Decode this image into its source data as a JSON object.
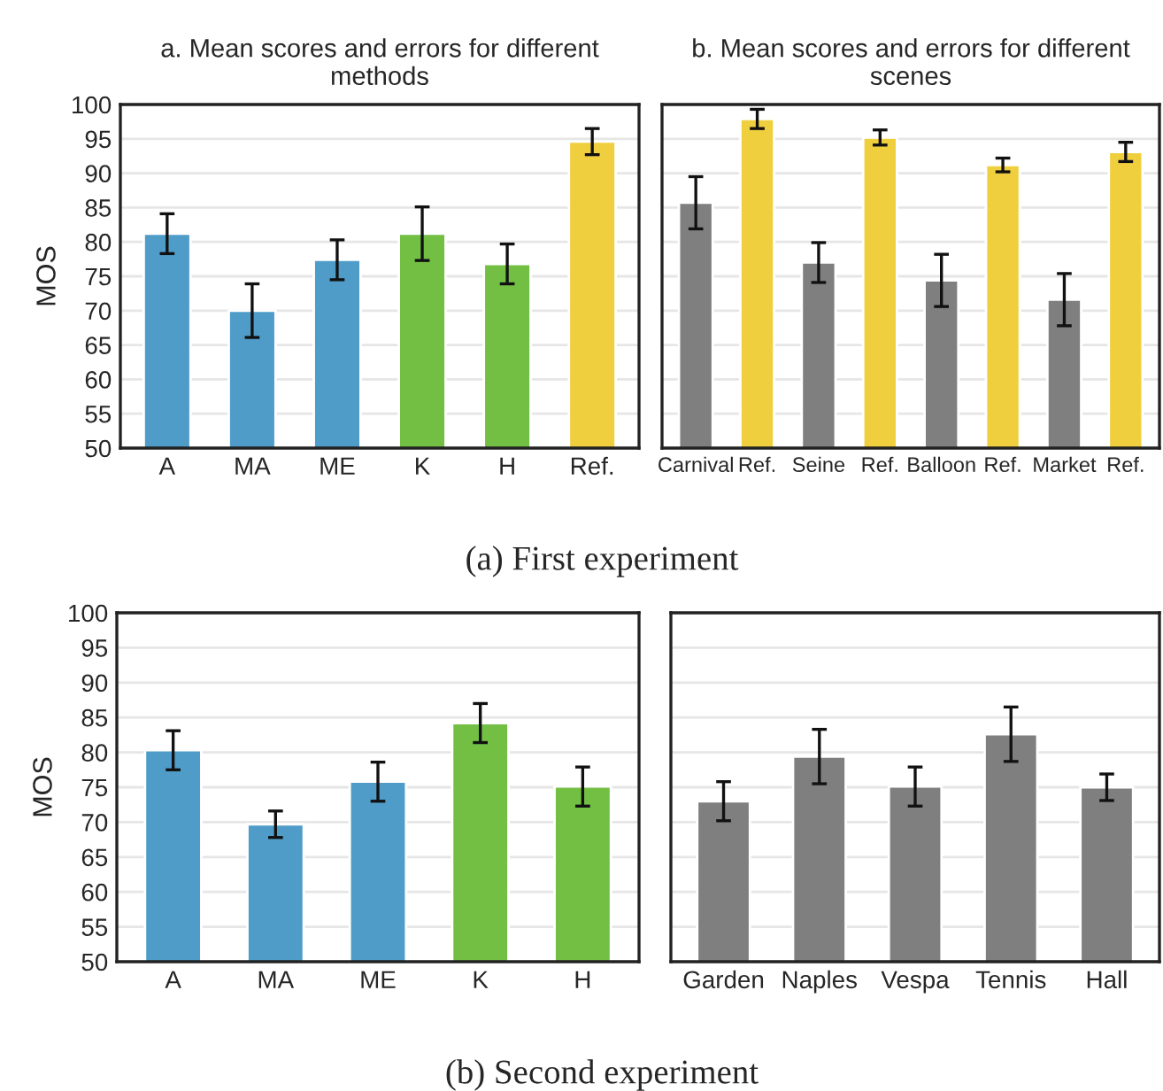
{
  "chart_data": [
    {
      "type": "bar",
      "title": "a. Mean scores and errors for different\nmethods",
      "ylabel": "MOS",
      "categories": [
        "A",
        "MA",
        "ME",
        "K",
        "H",
        "Ref."
      ],
      "values": [
        81.2,
        70.0,
        77.4,
        81.2,
        76.8,
        94.6
      ],
      "errors": [
        2.9,
        3.9,
        2.9,
        3.9,
        2.9,
        1.9
      ],
      "colors": [
        "#4f9cc9",
        "#4f9cc9",
        "#4f9cc9",
        "#72bf44",
        "#72bf44",
        "#f0cf3f"
      ],
      "ylim": [
        50,
        100
      ],
      "yticks": [
        50,
        55,
        60,
        65,
        70,
        75,
        80,
        85,
        90,
        95,
        100
      ],
      "grid": "y",
      "annotations": [
        "(a) First experiment"
      ]
    },
    {
      "type": "bar",
      "title": "b. Mean scores and errors for different\nscenes",
      "categories": [
        "Carnival",
        "Ref.",
        "Seine",
        "Ref.",
        "Balloon",
        "Ref.",
        "Market",
        "Ref."
      ],
      "values": [
        85.7,
        97.9,
        77.0,
        95.2,
        74.4,
        91.2,
        71.6,
        93.1
      ],
      "errors": [
        3.8,
        1.4,
        2.9,
        1.1,
        3.8,
        1.0,
        3.8,
        1.4
      ],
      "colors": [
        "#7f7f7f",
        "#f0cf3f",
        "#7f7f7f",
        "#f0cf3f",
        "#7f7f7f",
        "#f0cf3f",
        "#7f7f7f",
        "#f0cf3f"
      ],
      "ylim": [
        50,
        100
      ],
      "yticks": [
        50,
        55,
        60,
        65,
        70,
        75,
        80,
        85,
        90,
        95,
        100
      ],
      "grid": "y",
      "tick_labels": "x"
    },
    {
      "type": "bar",
      "ylabel": "MOS",
      "categories": [
        "A",
        "MA",
        "ME",
        "K",
        "H"
      ],
      "values": [
        80.3,
        69.7,
        75.8,
        84.2,
        75.1
      ],
      "errors": [
        2.8,
        1.9,
        2.8,
        2.8,
        2.8
      ],
      "colors": [
        "#4f9cc9",
        "#4f9cc9",
        "#4f9cc9",
        "#72bf44",
        "#72bf44"
      ],
      "ylim": [
        50,
        100
      ],
      "yticks": [
        50,
        55,
        60,
        65,
        70,
        75,
        80,
        85,
        90,
        95,
        100
      ],
      "grid": "y",
      "annotations": [
        "(b) Second experiment"
      ]
    },
    {
      "type": "bar",
      "categories": [
        "Garden",
        "Naples",
        "Vespa",
        "Tennis",
        "Hall"
      ],
      "values": [
        73.0,
        79.4,
        75.1,
        82.6,
        75.0
      ],
      "errors": [
        2.8,
        3.9,
        2.8,
        3.9,
        1.9
      ],
      "colors": [
        "#7f7f7f",
        "#7f7f7f",
        "#7f7f7f",
        "#7f7f7f",
        "#7f7f7f"
      ],
      "ylim": [
        50,
        100
      ],
      "yticks": [
        50,
        55,
        60,
        65,
        70,
        75,
        80,
        85,
        90,
        95,
        100
      ],
      "grid": "y",
      "tick_labels": "x"
    }
  ]
}
